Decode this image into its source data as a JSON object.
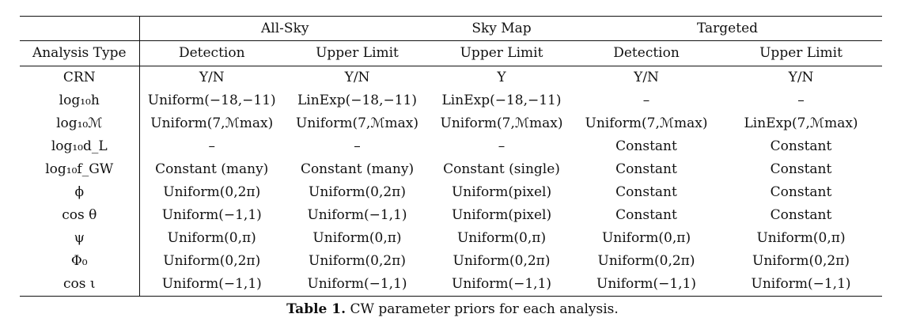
{
  "table": {
    "groups": [
      "All-Sky",
      "Sky Map",
      "Targeted"
    ],
    "headers": [
      "Analysis Type",
      "Detection",
      "Upper Limit",
      "Upper Limit",
      "Detection",
      "Upper Limit"
    ],
    "rows": [
      {
        "param": "CRN",
        "cells": [
          "Y/N",
          "Y/N",
          "Y",
          "Y/N",
          "Y/N"
        ]
      },
      {
        "param": "log₁₀h",
        "cells": [
          "Uniform(−18,−11)",
          "LinExp(−18,−11)",
          "LinExp(−18,−11)",
          "–",
          "–"
        ]
      },
      {
        "param": "log₁₀ℳ",
        "cells": [
          "Uniform(7,ℳmax)",
          "Uniform(7,ℳmax)",
          "Uniform(7,ℳmax)",
          "Uniform(7,ℳmax)",
          "LinExp(7,ℳmax)"
        ]
      },
      {
        "param": "log₁₀d_L",
        "cells": [
          "–",
          "–",
          "–",
          "Constant",
          "Constant"
        ]
      },
      {
        "param": "log₁₀f_GW",
        "cells": [
          "Constant (many)",
          "Constant (many)",
          "Constant (single)",
          "Constant",
          "Constant"
        ]
      },
      {
        "param": "ϕ",
        "cells": [
          "Uniform(0,2π)",
          "Uniform(0,2π)",
          "Uniform(pixel)",
          "Constant",
          "Constant"
        ]
      },
      {
        "param": "cos θ",
        "cells": [
          "Uniform(−1,1)",
          "Uniform(−1,1)",
          "Uniform(pixel)",
          "Constant",
          "Constant"
        ]
      },
      {
        "param": "ψ",
        "cells": [
          "Uniform(0,π)",
          "Uniform(0,π)",
          "Uniform(0,π)",
          "Uniform(0,π)",
          "Uniform(0,π)"
        ]
      },
      {
        "param": "Φ₀",
        "cells": [
          "Uniform(0,2π)",
          "Uniform(0,2π)",
          "Uniform(0,2π)",
          "Uniform(0,2π)",
          "Uniform(0,2π)"
        ]
      },
      {
        "param": "cos ι",
        "cells": [
          "Uniform(−1,1)",
          "Uniform(−1,1)",
          "Uniform(−1,1)",
          "Uniform(−1,1)",
          "Uniform(−1,1)"
        ]
      }
    ]
  },
  "caption": {
    "label": "Table 1.",
    "text": "CW parameter priors for each analysis."
  }
}
